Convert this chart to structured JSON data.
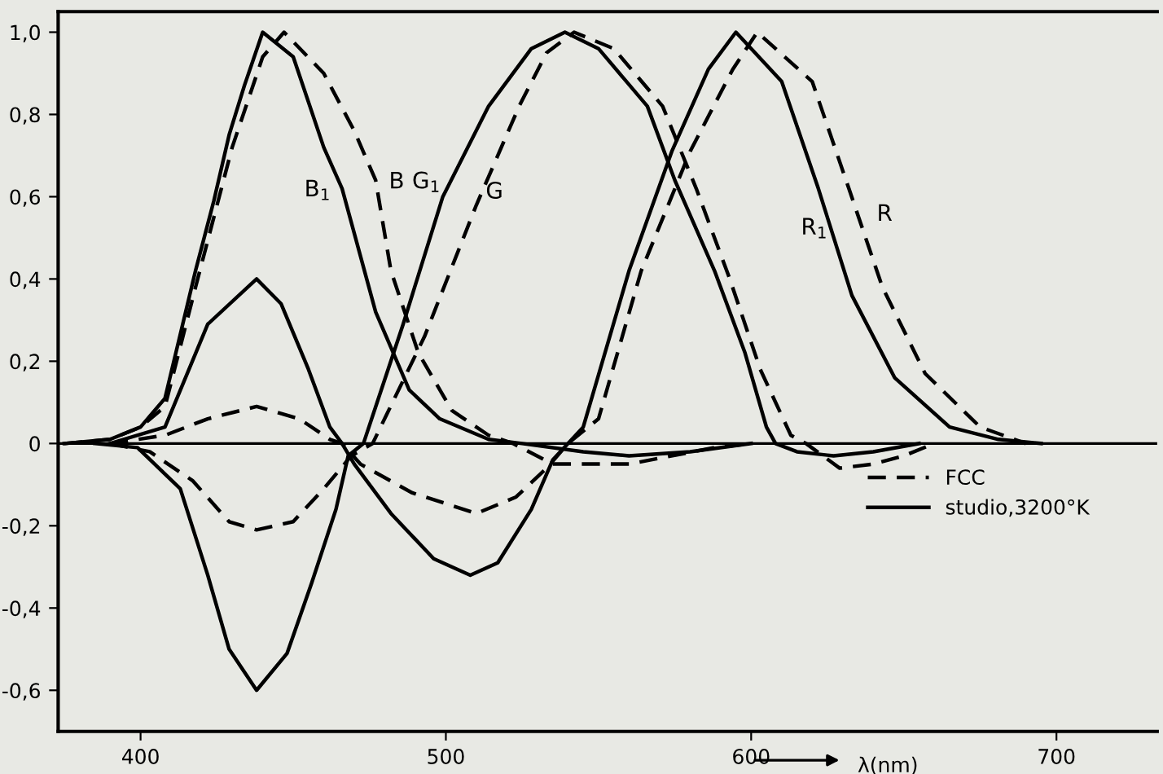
{
  "chart_data": {
    "type": "line",
    "xlabel": "λ(nm)",
    "xlim": [
      373,
      733
    ],
    "ylim": [
      -0.7,
      1.05
    ],
    "xticks": [
      400,
      500,
      600,
      700
    ],
    "yticks": [
      {
        "value": 1.0,
        "label": "1,0"
      },
      {
        "value": 0.8,
        "label": "0,8"
      },
      {
        "value": 0.6,
        "label": "0,6"
      },
      {
        "value": 0.4,
        "label": "0,4"
      },
      {
        "value": 0.2,
        "label": "0,2"
      },
      {
        "value": 0,
        "label": "0"
      },
      {
        "value": -0.2,
        "label": "-0,2"
      },
      {
        "value": -0.4,
        "label": "-0,4"
      },
      {
        "value": -0.6,
        "label": "-0,6"
      }
    ],
    "grid": false,
    "legend": "right",
    "marker": "none",
    "ref_lines": [
      {
        "axis": "y",
        "value": 0,
        "color": "#000000",
        "line_style": "solid"
      }
    ],
    "series": [
      {
        "name": "studio,3200°K",
        "color": "#000000",
        "line_style": "solid",
        "x": [
          375,
          390,
          400,
          408,
          418,
          424,
          429,
          434,
          440,
          450,
          460,
          466,
          477,
          488,
          498,
          514,
          525,
          545,
          560,
          580,
          600
        ],
        "values": [
          0,
          0.01,
          0.04,
          0.11,
          0.42,
          0.59,
          0.75,
          0.87,
          1.0,
          0.94,
          0.72,
          0.62,
          0.32,
          0.13,
          0.06,
          0.01,
          0,
          -0.02,
          -0.03,
          -0.02,
          0
        ]
      },
      {
        "name": "FCC",
        "color": "#000000",
        "line_style": "dashed",
        "x": [
          375,
          390,
          400,
          408,
          418,
          430,
          440,
          447,
          460,
          470,
          477,
          482,
          491,
          502,
          514,
          522,
          535,
          560,
          588,
          600
        ],
        "values": [
          0,
          0.01,
          0.04,
          0.09,
          0.38,
          0.72,
          0.94,
          1.0,
          0.9,
          0.76,
          0.64,
          0.42,
          0.22,
          0.08,
          0.02,
          0,
          -0.05,
          -0.05,
          -0.01,
          0
        ]
      },
      {
        "color": "#000000",
        "line_style": "solid",
        "x": [
          385,
          399,
          413,
          422,
          429,
          438,
          448,
          456,
          464,
          468,
          473,
          486,
          499,
          514,
          528,
          539,
          550,
          566,
          575,
          588,
          598,
          605,
          608,
          615,
          627,
          640,
          655
        ],
        "values": [
          0,
          -0.01,
          -0.11,
          -0.32,
          -0.5,
          -0.6,
          -0.51,
          -0.34,
          -0.16,
          -0.03,
          0,
          0.29,
          0.6,
          0.82,
          0.96,
          1.0,
          0.96,
          0.82,
          0.64,
          0.42,
          0.22,
          0.04,
          0,
          -0.02,
          -0.03,
          -0.02,
          0
        ]
      },
      {
        "color": "#000000",
        "line_style": "dashed",
        "x": [
          390,
          403,
          417,
          429,
          438,
          450,
          460,
          469,
          476,
          493,
          510,
          524,
          533,
          542,
          555,
          571,
          582,
          593,
          603,
          613,
          618,
          629,
          640,
          650,
          660
        ],
        "values": [
          0,
          -0.02,
          -0.09,
          -0.19,
          -0.21,
          -0.19,
          -0.11,
          -0.03,
          0,
          0.26,
          0.58,
          0.82,
          0.95,
          1.0,
          0.96,
          0.82,
          0.62,
          0.4,
          0.18,
          0.02,
          0,
          -0.06,
          -0.05,
          -0.03,
          0
        ]
      },
      {
        "color": "#000000",
        "line_style": "solid",
        "x": [
          390,
          408,
          422,
          438,
          446,
          455,
          462,
          466,
          470,
          482,
          496,
          508,
          517,
          528,
          535,
          545,
          560,
          574,
          586,
          595,
          610,
          622,
          633,
          647,
          665,
          681,
          695
        ],
        "values": [
          0,
          0.04,
          0.29,
          0.4,
          0.34,
          0.18,
          0.04,
          0,
          -0.05,
          -0.17,
          -0.28,
          -0.32,
          -0.29,
          -0.16,
          -0.04,
          0.04,
          0.42,
          0.71,
          0.91,
          1.0,
          0.88,
          0.62,
          0.36,
          0.16,
          0.04,
          0.01,
          0
        ]
      },
      {
        "color": "#000000",
        "line_style": "dashed",
        "x": [
          390,
          408,
          422,
          438,
          452,
          462,
          466,
          472,
          489,
          510,
          523,
          533,
          540,
          550,
          564,
          580,
          594,
          602,
          620,
          632,
          643,
          657,
          675,
          690
        ],
        "values": [
          0,
          0.02,
          0.06,
          0.09,
          0.06,
          0.01,
          0,
          -0.05,
          -0.12,
          -0.17,
          -0.13,
          -0.06,
          0,
          0.06,
          0.42,
          0.71,
          0.91,
          1.0,
          0.88,
          0.62,
          0.38,
          0.17,
          0.04,
          0
        ]
      }
    ],
    "annotations": [
      "B$_{1}$",
      "B",
      "G$_{1}$",
      "G",
      "R$_{1}$",
      "R"
    ]
  }
}
